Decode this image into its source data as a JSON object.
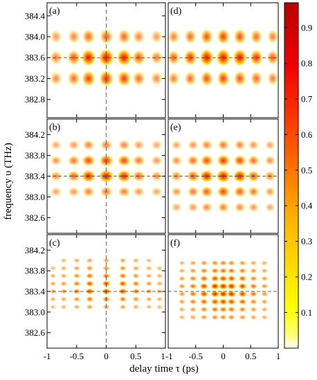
{
  "chart_data": {
    "type": "heatmap",
    "xlabel": "delay time τ (ps)",
    "ylabel": "frequency υ (THz)",
    "xlim": [
      -1,
      1
    ],
    "x_ticks": [
      -1,
      -0.5,
      0,
      0.5,
      1
    ],
    "x_tick_labels": [
      "-1",
      "-0.5",
      "0",
      "0.5",
      "1"
    ],
    "colorbar": {
      "range": [
        0,
        0.97
      ],
      "ticks": [
        0.1,
        0.2,
        0.3,
        0.4,
        0.5,
        0.6,
        0.7,
        0.8,
        0.9
      ],
      "tick_labels": [
        "0.1",
        "0.2",
        "0.3",
        "0.4",
        "0.5",
        "0.6",
        "0.7",
        "0.8",
        "0.9"
      ],
      "colormap": [
        "#ffffff",
        "#ffff00",
        "#ffb000",
        "#ff4000",
        "#c00000"
      ]
    },
    "panels": [
      {
        "label": "(a)",
        "row": 0,
        "col": 0,
        "ylim": [
          382.45,
          384.65
        ],
        "y_ticks": [
          382.8,
          383.2,
          383.6,
          384.0,
          384.4
        ],
        "y_tick_labels": [
          "382.8",
          "383.2",
          "383.6",
          "384.0",
          "384.4"
        ],
        "crosshair_x": 0,
        "crosshair_y": 383.6,
        "delay_spots": [
          -0.85,
          -0.55,
          -0.3,
          0,
          0.3,
          0.55,
          0.85
        ],
        "delay_weights": [
          0.3,
          0.5,
          0.8,
          0.93,
          0.8,
          0.5,
          0.3
        ],
        "freq_spots": [
          383.2,
          383.6,
          384.0
        ],
        "freq_weights": [
          0.75,
          1.0,
          0.5
        ]
      },
      {
        "label": "(b)",
        "row": 1,
        "col": 0,
        "ylim": [
          382.3,
          384.5
        ],
        "y_ticks": [
          382.6,
          383.0,
          383.4,
          383.8,
          384.2
        ],
        "y_tick_labels": [
          "382.6",
          "383.0",
          "383.4",
          "383.8",
          "384.2"
        ],
        "crosshair_x": 0,
        "crosshair_y": 383.4,
        "delay_spots": [
          -0.85,
          -0.55,
          -0.3,
          0,
          0.3,
          0.55,
          0.85
        ],
        "delay_weights": [
          0.25,
          0.45,
          0.75,
          0.9,
          0.75,
          0.45,
          0.25
        ],
        "freq_spots": [
          383.1,
          383.4,
          383.7,
          384.0
        ],
        "freq_weights": [
          0.4,
          1.0,
          0.75,
          0.35
        ]
      },
      {
        "label": "(c)",
        "row": 2,
        "col": 0,
        "ylim": [
          382.3,
          384.5
        ],
        "y_ticks": [
          382.6,
          383.0,
          383.4,
          383.8,
          384.2
        ],
        "y_tick_labels": [
          "382.6",
          "383.0",
          "383.4",
          "383.8",
          "384.2"
        ],
        "crosshair_x": 0,
        "crosshair_y": 383.4,
        "delay_spots": [
          -0.9,
          -0.72,
          -0.5,
          -0.28,
          0,
          0.28,
          0.5,
          0.72,
          0.9
        ],
        "delay_weights": [
          0.2,
          0.3,
          0.5,
          0.75,
          0.85,
          0.75,
          0.5,
          0.3,
          0.2
        ],
        "freq_spots": [
          383.1,
          383.25,
          383.4,
          383.55,
          383.7,
          383.85,
          384.0
        ],
        "freq_weights": [
          0.3,
          0.55,
          0.9,
          0.8,
          0.6,
          0.4,
          0.25
        ]
      },
      {
        "label": "(d)",
        "row": 0,
        "col": 1,
        "ylim": [
          382.45,
          384.65
        ],
        "crosshair_y": 383.6,
        "delay_spots": [
          -0.9,
          -0.6,
          -0.3,
          0,
          0.3,
          0.6,
          0.9
        ],
        "delay_weights": [
          0.45,
          0.65,
          0.85,
          0.95,
          0.85,
          0.65,
          0.45
        ],
        "freq_spots": [
          383.2,
          383.6,
          384.0
        ],
        "freq_weights": [
          0.6,
          1.0,
          0.6
        ]
      },
      {
        "label": "(e)",
        "row": 1,
        "col": 1,
        "ylim": [
          382.3,
          384.5
        ],
        "crosshair_y": 383.4,
        "delay_spots": [
          -0.85,
          -0.55,
          -0.3,
          0,
          0.3,
          0.55,
          0.85
        ],
        "delay_weights": [
          0.3,
          0.55,
          0.8,
          0.95,
          0.8,
          0.55,
          0.3
        ],
        "freq_spots": [
          382.8,
          383.1,
          383.4,
          383.7,
          384.0
        ],
        "freq_weights": [
          0.3,
          0.6,
          1.0,
          0.7,
          0.35
        ]
      },
      {
        "label": "(f)",
        "row": 2,
        "col": 1,
        "ylim": [
          382.3,
          384.5
        ],
        "crosshair_y": 383.4,
        "delay_spots": [
          -0.75,
          -0.55,
          -0.35,
          -0.15,
          0,
          0.15,
          0.35,
          0.55,
          0.75
        ],
        "delay_weights": [
          0.3,
          0.5,
          0.75,
          0.9,
          0.95,
          0.9,
          0.75,
          0.5,
          0.3
        ],
        "freq_spots": [
          382.9,
          383.05,
          383.2,
          383.35,
          383.5,
          383.65,
          383.8,
          383.95
        ],
        "freq_weights": [
          0.35,
          0.5,
          0.7,
          0.9,
          0.9,
          0.7,
          0.5,
          0.35
        ]
      }
    ]
  }
}
